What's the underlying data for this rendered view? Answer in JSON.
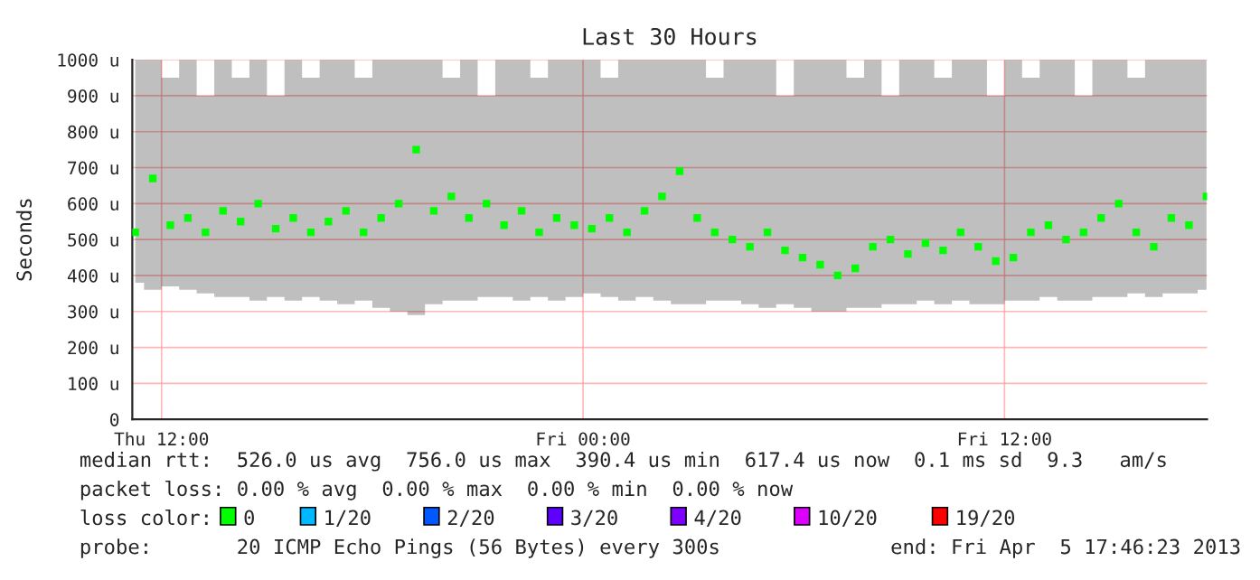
{
  "chart_data": {
    "type": "scatter",
    "title": "Last 30 Hours",
    "ylabel": "Seconds",
    "marker": "square",
    "grid": true,
    "legend": false,
    "xlim": [
      "2013-04-04T11:10",
      "2013-04-05T17:46"
    ],
    "xticks": [
      {
        "value": "2013-04-04T12:00",
        "label": "Thu 12:00"
      },
      {
        "value": "2013-04-05T00:00",
        "label": "Fri 00:00"
      },
      {
        "value": "2013-04-05T12:00",
        "label": "Fri 12:00"
      }
    ],
    "ylim": [
      0,
      1000
    ],
    "yticks": [
      0,
      {
        "value": 100,
        "label": "100 u"
      },
      {
        "value": 200,
        "label": "200 u"
      },
      {
        "value": 300,
        "label": "300 u"
      },
      {
        "value": 400,
        "label": "400 u"
      },
      {
        "value": 500,
        "label": "500 u"
      },
      {
        "value": 600,
        "label": "600 u"
      },
      {
        "value": 700,
        "label": "700 u"
      },
      {
        "value": 800,
        "label": "800 u"
      },
      {
        "value": 900,
        "label": "900 u"
      },
      {
        "value": 1000,
        "label": "1000 u"
      }
    ],
    "x": [
      "2013-04-04T11:15",
      "2013-04-04T11:45",
      "2013-04-04T12:15",
      "2013-04-04T12:45",
      "2013-04-04T13:15",
      "2013-04-04T13:45",
      "2013-04-04T14:15",
      "2013-04-04T14:45",
      "2013-04-04T15:15",
      "2013-04-04T15:45",
      "2013-04-04T16:15",
      "2013-04-04T16:45",
      "2013-04-04T17:15",
      "2013-04-04T17:45",
      "2013-04-04T18:15",
      "2013-04-04T18:45",
      "2013-04-04T19:15",
      "2013-04-04T19:45",
      "2013-04-04T20:15",
      "2013-04-04T20:45",
      "2013-04-04T21:15",
      "2013-04-04T21:45",
      "2013-04-04T22:15",
      "2013-04-04T22:45",
      "2013-04-04T23:15",
      "2013-04-04T23:45",
      "2013-04-05T00:15",
      "2013-04-05T00:45",
      "2013-04-05T01:15",
      "2013-04-05T01:45",
      "2013-04-05T02:15",
      "2013-04-05T02:45",
      "2013-04-05T03:15",
      "2013-04-05T03:45",
      "2013-04-05T04:15",
      "2013-04-05T04:45",
      "2013-04-05T05:15",
      "2013-04-05T05:45",
      "2013-04-05T06:15",
      "2013-04-05T06:45",
      "2013-04-05T07:15",
      "2013-04-05T07:45",
      "2013-04-05T08:15",
      "2013-04-05T08:45",
      "2013-04-05T09:15",
      "2013-04-05T09:45",
      "2013-04-05T10:15",
      "2013-04-05T10:45",
      "2013-04-05T11:15",
      "2013-04-05T11:45",
      "2013-04-05T12:15",
      "2013-04-05T12:45",
      "2013-04-05T13:15",
      "2013-04-05T13:45",
      "2013-04-05T14:15",
      "2013-04-05T14:45",
      "2013-04-05T15:15",
      "2013-04-05T15:45",
      "2013-04-05T16:15",
      "2013-04-05T16:45",
      "2013-04-05T17:15",
      "2013-04-05T17:45"
    ],
    "series": [
      {
        "color": "#00ff00",
        "values": [
          520,
          670,
          540,
          560,
          520,
          580,
          550,
          600,
          530,
          560,
          520,
          550,
          580,
          520,
          560,
          600,
          750,
          580,
          620,
          560,
          600,
          540,
          580,
          520,
          560,
          540,
          530,
          560,
          520,
          580,
          620,
          690,
          560,
          520,
          500,
          480,
          520,
          470,
          450,
          430,
          400,
          420,
          480,
          500,
          460,
          490,
          470,
          520,
          480,
          440,
          450,
          520,
          540,
          500,
          520,
          560,
          600,
          520,
          480,
          560,
          540,
          620
        ],
        "lower": [
          380,
          360,
          370,
          360,
          350,
          340,
          340,
          330,
          340,
          330,
          340,
          330,
          320,
          330,
          310,
          300,
          290,
          320,
          330,
          330,
          340,
          340,
          330,
          340,
          330,
          340,
          350,
          340,
          330,
          340,
          330,
          320,
          320,
          330,
          330,
          320,
          310,
          320,
          310,
          300,
          300,
          310,
          310,
          320,
          320,
          330,
          320,
          330,
          320,
          320,
          330,
          330,
          340,
          330,
          330,
          340,
          340,
          350,
          340,
          350,
          350,
          360
        ],
        "upper": [
          1000,
          1000,
          950,
          1000,
          900,
          1000,
          950,
          1000,
          900,
          1000,
          950,
          1000,
          1000,
          950,
          1000,
          1000,
          1000,
          1000,
          950,
          1000,
          900,
          1000,
          1000,
          950,
          1000,
          1000,
          1000,
          950,
          1000,
          1000,
          1000,
          1000,
          1000,
          950,
          1000,
          1000,
          1000,
          900,
          1000,
          1000,
          1000,
          950,
          1000,
          900,
          1000,
          1000,
          950,
          1000,
          1000,
          900,
          1000,
          950,
          1000,
          1000,
          900,
          1000,
          1000,
          950,
          1000,
          1000,
          1000,
          1000
        ]
      }
    ],
    "annotations": [
      "median rtt:  526.0 us avg  756.0 us max  390.4 us min  617.4 us now  0.1 ms sd  9.3   am/s",
      "packet loss: 0.00 % avg  0.00 % max  0.00 % min  0.00 % now",
      "loss color:",
      "0",
      "1/20",
      "2/20",
      "3/20",
      "4/20",
      "10/20",
      "19/20",
      "probe:       20 ICMP Echo Pings (56 Bytes) every 300s",
      "end: Fri Apr  5 17:46:23 2013"
    ]
  }
}
